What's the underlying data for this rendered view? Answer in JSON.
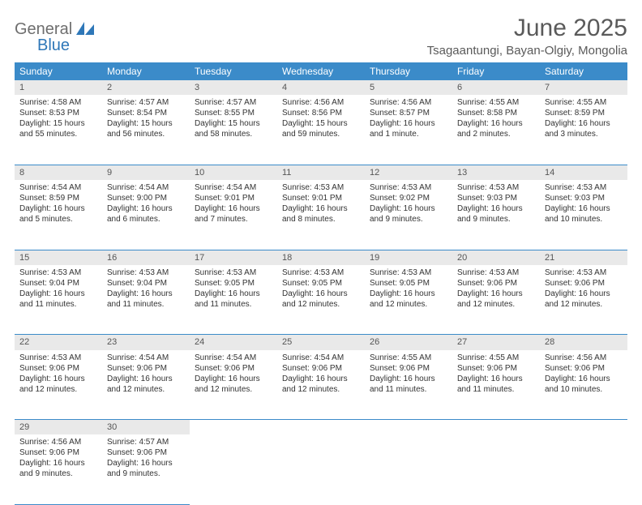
{
  "brand": {
    "word1": "General",
    "word2": "Blue",
    "word1_color": "#6e6e6e",
    "word2_color": "#2e77b8",
    "mark_color": "#2e77b8"
  },
  "header": {
    "title": "June 2025",
    "location": "Tsagaantungi, Bayan-Olgiy, Mongolia",
    "title_color": "#5a5a5a",
    "title_fontsize": 30,
    "location_fontsize": 15
  },
  "style": {
    "header_bg": "#3b8bc9",
    "header_fg": "#ffffff",
    "daynum_bg": "#e9e9e9",
    "daynum_fg": "#555555",
    "row_divider": "#3b8bc9",
    "body_font": "Arial",
    "cell_fontsize": 10
  },
  "weekdays": [
    "Sunday",
    "Monday",
    "Tuesday",
    "Wednesday",
    "Thursday",
    "Friday",
    "Saturday"
  ],
  "weeks": [
    [
      {
        "num": "1",
        "sunrise": "Sunrise: 4:58 AM",
        "sunset": "Sunset: 8:53 PM",
        "daylight": "Daylight: 15 hours and 55 minutes."
      },
      {
        "num": "2",
        "sunrise": "Sunrise: 4:57 AM",
        "sunset": "Sunset: 8:54 PM",
        "daylight": "Daylight: 15 hours and 56 minutes."
      },
      {
        "num": "3",
        "sunrise": "Sunrise: 4:57 AM",
        "sunset": "Sunset: 8:55 PM",
        "daylight": "Daylight: 15 hours and 58 minutes."
      },
      {
        "num": "4",
        "sunrise": "Sunrise: 4:56 AM",
        "sunset": "Sunset: 8:56 PM",
        "daylight": "Daylight: 15 hours and 59 minutes."
      },
      {
        "num": "5",
        "sunrise": "Sunrise: 4:56 AM",
        "sunset": "Sunset: 8:57 PM",
        "daylight": "Daylight: 16 hours and 1 minute."
      },
      {
        "num": "6",
        "sunrise": "Sunrise: 4:55 AM",
        "sunset": "Sunset: 8:58 PM",
        "daylight": "Daylight: 16 hours and 2 minutes."
      },
      {
        "num": "7",
        "sunrise": "Sunrise: 4:55 AM",
        "sunset": "Sunset: 8:59 PM",
        "daylight": "Daylight: 16 hours and 3 minutes."
      }
    ],
    [
      {
        "num": "8",
        "sunrise": "Sunrise: 4:54 AM",
        "sunset": "Sunset: 8:59 PM",
        "daylight": "Daylight: 16 hours and 5 minutes."
      },
      {
        "num": "9",
        "sunrise": "Sunrise: 4:54 AM",
        "sunset": "Sunset: 9:00 PM",
        "daylight": "Daylight: 16 hours and 6 minutes."
      },
      {
        "num": "10",
        "sunrise": "Sunrise: 4:54 AM",
        "sunset": "Sunset: 9:01 PM",
        "daylight": "Daylight: 16 hours and 7 minutes."
      },
      {
        "num": "11",
        "sunrise": "Sunrise: 4:53 AM",
        "sunset": "Sunset: 9:01 PM",
        "daylight": "Daylight: 16 hours and 8 minutes."
      },
      {
        "num": "12",
        "sunrise": "Sunrise: 4:53 AM",
        "sunset": "Sunset: 9:02 PM",
        "daylight": "Daylight: 16 hours and 9 minutes."
      },
      {
        "num": "13",
        "sunrise": "Sunrise: 4:53 AM",
        "sunset": "Sunset: 9:03 PM",
        "daylight": "Daylight: 16 hours and 9 minutes."
      },
      {
        "num": "14",
        "sunrise": "Sunrise: 4:53 AM",
        "sunset": "Sunset: 9:03 PM",
        "daylight": "Daylight: 16 hours and 10 minutes."
      }
    ],
    [
      {
        "num": "15",
        "sunrise": "Sunrise: 4:53 AM",
        "sunset": "Sunset: 9:04 PM",
        "daylight": "Daylight: 16 hours and 11 minutes."
      },
      {
        "num": "16",
        "sunrise": "Sunrise: 4:53 AM",
        "sunset": "Sunset: 9:04 PM",
        "daylight": "Daylight: 16 hours and 11 minutes."
      },
      {
        "num": "17",
        "sunrise": "Sunrise: 4:53 AM",
        "sunset": "Sunset: 9:05 PM",
        "daylight": "Daylight: 16 hours and 11 minutes."
      },
      {
        "num": "18",
        "sunrise": "Sunrise: 4:53 AM",
        "sunset": "Sunset: 9:05 PM",
        "daylight": "Daylight: 16 hours and 12 minutes."
      },
      {
        "num": "19",
        "sunrise": "Sunrise: 4:53 AM",
        "sunset": "Sunset: 9:05 PM",
        "daylight": "Daylight: 16 hours and 12 minutes."
      },
      {
        "num": "20",
        "sunrise": "Sunrise: 4:53 AM",
        "sunset": "Sunset: 9:06 PM",
        "daylight": "Daylight: 16 hours and 12 minutes."
      },
      {
        "num": "21",
        "sunrise": "Sunrise: 4:53 AM",
        "sunset": "Sunset: 9:06 PM",
        "daylight": "Daylight: 16 hours and 12 minutes."
      }
    ],
    [
      {
        "num": "22",
        "sunrise": "Sunrise: 4:53 AM",
        "sunset": "Sunset: 9:06 PM",
        "daylight": "Daylight: 16 hours and 12 minutes."
      },
      {
        "num": "23",
        "sunrise": "Sunrise: 4:54 AM",
        "sunset": "Sunset: 9:06 PM",
        "daylight": "Daylight: 16 hours and 12 minutes."
      },
      {
        "num": "24",
        "sunrise": "Sunrise: 4:54 AM",
        "sunset": "Sunset: 9:06 PM",
        "daylight": "Daylight: 16 hours and 12 minutes."
      },
      {
        "num": "25",
        "sunrise": "Sunrise: 4:54 AM",
        "sunset": "Sunset: 9:06 PM",
        "daylight": "Daylight: 16 hours and 12 minutes."
      },
      {
        "num": "26",
        "sunrise": "Sunrise: 4:55 AM",
        "sunset": "Sunset: 9:06 PM",
        "daylight": "Daylight: 16 hours and 11 minutes."
      },
      {
        "num": "27",
        "sunrise": "Sunrise: 4:55 AM",
        "sunset": "Sunset: 9:06 PM",
        "daylight": "Daylight: 16 hours and 11 minutes."
      },
      {
        "num": "28",
        "sunrise": "Sunrise: 4:56 AM",
        "sunset": "Sunset: 9:06 PM",
        "daylight": "Daylight: 16 hours and 10 minutes."
      }
    ],
    [
      {
        "num": "29",
        "sunrise": "Sunrise: 4:56 AM",
        "sunset": "Sunset: 9:06 PM",
        "daylight": "Daylight: 16 hours and 9 minutes."
      },
      {
        "num": "30",
        "sunrise": "Sunrise: 4:57 AM",
        "sunset": "Sunset: 9:06 PM",
        "daylight": "Daylight: 16 hours and 9 minutes."
      },
      {
        "empty": true
      },
      {
        "empty": true
      },
      {
        "empty": true
      },
      {
        "empty": true
      },
      {
        "empty": true
      }
    ]
  ]
}
